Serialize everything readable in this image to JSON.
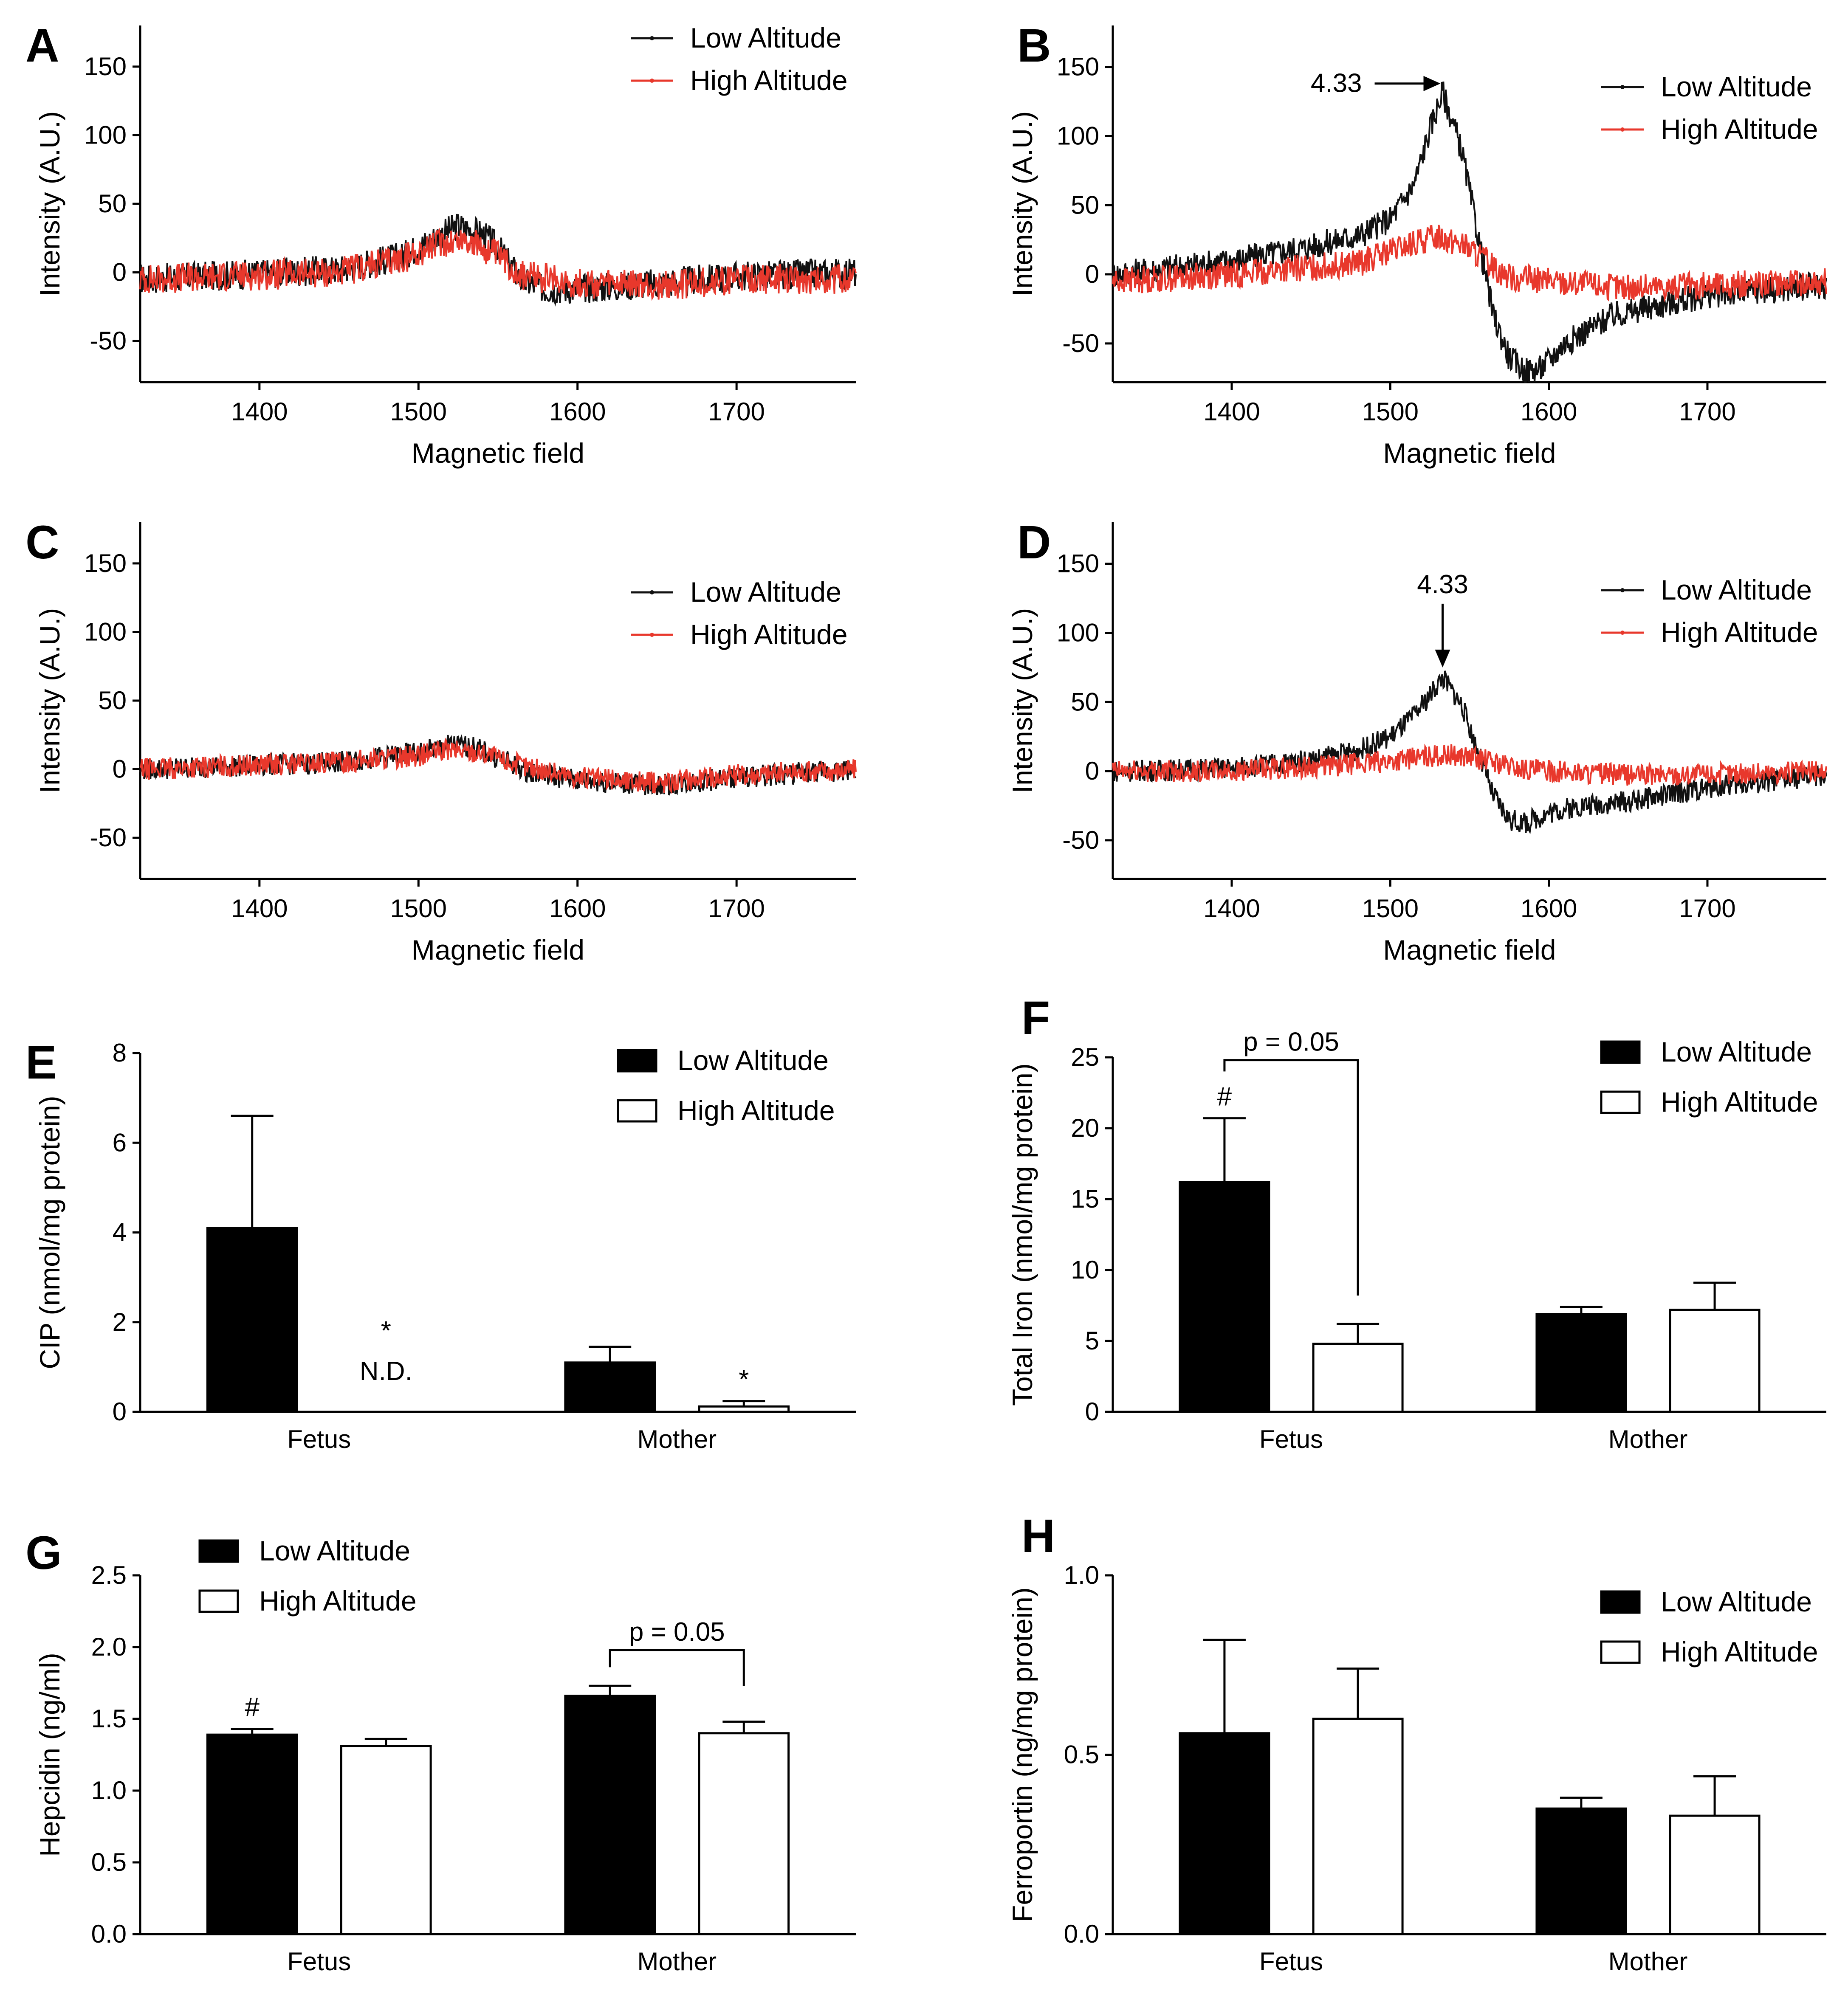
{
  "figure": {
    "title": ""
  },
  "legend_labels": {
    "low": "Low Altitude",
    "high": "High Altitude"
  },
  "colors": {
    "low": "#111111",
    "high": "#e8382c",
    "bar_low": "#000000",
    "bar_high": "#ffffff"
  },
  "chart_data": [
    {
      "id": "A",
      "panel_label": "A",
      "type": "line",
      "xlabel": "Magnetic field",
      "ylabel": "Intensity (A.U.)",
      "xlim": [
        1325,
        1775
      ],
      "ylim": [
        -80,
        180
      ],
      "xticks": [
        1400,
        1500,
        1600,
        1700
      ],
      "yticks": [
        -50,
        0,
        50,
        100,
        150
      ],
      "legend_position": "top-right",
      "noise": 11,
      "series": [
        {
          "name": "Low Altitude",
          "x": [
            1325,
            1450,
            1490,
            1510,
            1525,
            1540,
            1550,
            1565,
            1580,
            1600,
            1625,
            1650,
            1700,
            1775
          ],
          "y": [
            -5,
            2,
            12,
            25,
            34,
            28,
            18,
            -6,
            -12,
            -12,
            -10,
            -8,
            -3,
            0
          ]
        },
        {
          "name": "High Altitude",
          "x": [
            1325,
            1450,
            1490,
            1515,
            1530,
            1550,
            1565,
            1600,
            1650,
            1700,
            1775
          ],
          "y": [
            -5,
            0,
            10,
            22,
            24,
            12,
            -2,
            -8,
            -10,
            -5,
            -5
          ]
        }
      ],
      "annotations": []
    },
    {
      "id": "B",
      "panel_label": "B",
      "type": "line",
      "xlabel": "Magnetic field",
      "ylabel": "Intensity (A.U.)",
      "xlim": [
        1325,
        1775
      ],
      "ylim": [
        -78,
        180
      ],
      "xticks": [
        1400,
        1500,
        1600,
        1700
      ],
      "yticks": [
        -50,
        0,
        50,
        100,
        150
      ],
      "legend_position": "top-right",
      "noise": 10,
      "series": [
        {
          "name": "Low Altitude",
          "x": [
            1325,
            1400,
            1450,
            1480,
            1500,
            1515,
            1525,
            1533,
            1545,
            1555,
            1565,
            1575,
            1585,
            1595,
            1610,
            1640,
            1700,
            1775
          ],
          "y": [
            0,
            10,
            20,
            28,
            40,
            65,
            105,
            132,
            90,
            30,
            -30,
            -60,
            -70,
            -68,
            -50,
            -30,
            -15,
            -8
          ]
        },
        {
          "name": "High Altitude",
          "x": [
            1325,
            1400,
            1480,
            1510,
            1530,
            1545,
            1560,
            1575,
            1600,
            1650,
            1700,
            1775
          ],
          "y": [
            -5,
            0,
            8,
            20,
            28,
            22,
            10,
            -2,
            -5,
            -10,
            -8,
            -5
          ]
        }
      ],
      "annotations": [
        {
          "text": "4.33",
          "x": 1533,
          "y": 138,
          "arrow": "left"
        }
      ]
    },
    {
      "id": "C",
      "panel_label": "C",
      "type": "line",
      "xlabel": "Magnetic field",
      "ylabel": "Intensity (A.U.)",
      "xlim": [
        1325,
        1775
      ],
      "ylim": [
        -80,
        180
      ],
      "xticks": [
        1400,
        1500,
        1600,
        1700
      ],
      "yticks": [
        -50,
        0,
        50,
        100,
        150
      ],
      "legend_position": "top-right",
      "noise": 8,
      "series": [
        {
          "name": "Low Altitude",
          "x": [
            1325,
            1450,
            1500,
            1520,
            1535,
            1550,
            1570,
            1600,
            1650,
            1700,
            1775
          ],
          "y": [
            0,
            5,
            12,
            18,
            16,
            8,
            -2,
            -8,
            -12,
            -6,
            0
          ]
        },
        {
          "name": "High Altitude",
          "x": [
            1325,
            1450,
            1500,
            1520,
            1540,
            1560,
            1600,
            1650,
            1700,
            1775
          ],
          "y": [
            0,
            5,
            10,
            14,
            12,
            4,
            -6,
            -10,
            -4,
            0
          ]
        }
      ],
      "annotations": []
    },
    {
      "id": "D",
      "panel_label": "D",
      "type": "line",
      "xlabel": "Magnetic field",
      "ylabel": "Intensity (A.U.)",
      "xlim": [
        1325,
        1775
      ],
      "ylim": [
        -78,
        180
      ],
      "xticks": [
        1400,
        1500,
        1600,
        1700
      ],
      "yticks": [
        -50,
        0,
        50,
        100,
        150
      ],
      "legend_position": "top-right",
      "noise": 8,
      "series": [
        {
          "name": "Low Altitude",
          "x": [
            1325,
            1400,
            1450,
            1480,
            1500,
            1515,
            1525,
            1533,
            1545,
            1555,
            1565,
            1575,
            1585,
            1600,
            1620,
            1650,
            1700,
            1775
          ],
          "y": [
            0,
            2,
            8,
            15,
            25,
            40,
            55,
            68,
            48,
            15,
            -18,
            -35,
            -38,
            -30,
            -25,
            -22,
            -12,
            -3
          ]
        },
        {
          "name": "High Altitude",
          "x": [
            1325,
            1400,
            1480,
            1520,
            1540,
            1560,
            1580,
            1600,
            1650,
            1700,
            1775
          ],
          "y": [
            0,
            0,
            5,
            10,
            12,
            8,
            2,
            0,
            -3,
            -2,
            0
          ]
        }
      ],
      "annotations": [
        {
          "text": "4.33",
          "x": 1533,
          "y": 75,
          "arrow": "down"
        }
      ]
    },
    {
      "id": "E",
      "panel_label": "E",
      "type": "bar",
      "categories": [
        "Fetus",
        "Mother"
      ],
      "ylabel": "CIP (nmol/mg protein)",
      "xlabel": "",
      "ylim": [
        0,
        8
      ],
      "yticks": [
        0,
        2,
        4,
        6,
        8
      ],
      "ytick_labels": [
        "0",
        "2",
        "4",
        "6",
        "8"
      ],
      "legend_position": "top-right",
      "series": [
        {
          "name": "Low Altitude",
          "values": [
            4.1,
            1.1
          ],
          "errors": [
            2.5,
            0.35
          ]
        },
        {
          "name": "High Altitude",
          "values": [
            0,
            0.12
          ],
          "errors": [
            0,
            0.12
          ]
        }
      ],
      "bar_labels": [
        {
          "category": 0,
          "series": 1,
          "lines": [
            "*",
            "N.D."
          ]
        },
        {
          "category": 1,
          "series": 1,
          "lines": [
            "*"
          ]
        }
      ],
      "brackets": []
    },
    {
      "id": "F",
      "panel_label": "F",
      "type": "bar",
      "categories": [
        "Fetus",
        "Mother"
      ],
      "ylabel": "Total Iron (nmol/mg protein)",
      "xlabel": "",
      "ylim": [
        0,
        25
      ],
      "yticks": [
        0,
        5,
        10,
        15,
        20,
        25
      ],
      "ytick_labels": [
        "0",
        "5",
        "10",
        "15",
        "20",
        "25"
      ],
      "legend_position": "top-right",
      "series": [
        {
          "name": "Low Altitude",
          "values": [
            16.2,
            6.9
          ],
          "errors": [
            4.5,
            0.5
          ]
        },
        {
          "name": "High Altitude",
          "values": [
            4.8,
            7.2
          ],
          "errors": [
            1.4,
            1.9
          ]
        }
      ],
      "bar_labels": [
        {
          "category": 0,
          "series": 0,
          "lines": [
            "#"
          ]
        }
      ],
      "brackets": [
        {
          "category": 0,
          "text": "p = 0.05",
          "y_top": 24.8,
          "left_end": 24.0,
          "right_end": 8.2
        }
      ]
    },
    {
      "id": "G",
      "panel_label": "G",
      "type": "bar",
      "categories": [
        "Fetus",
        "Mother"
      ],
      "ylabel": "Hepcidin (ng/ml)",
      "xlabel": "",
      "ylim": [
        0,
        2.5
      ],
      "yticks": [
        0,
        0.5,
        1.0,
        1.5,
        2.0,
        2.5
      ],
      "ytick_labels": [
        "0.0",
        "0.5",
        "1.0",
        "1.5",
        "2.0",
        "2.5"
      ],
      "legend_position": "top-left",
      "series": [
        {
          "name": "Low Altitude",
          "values": [
            1.39,
            1.66
          ],
          "errors": [
            0.04,
            0.07
          ]
        },
        {
          "name": "High Altitude",
          "values": [
            1.31,
            1.4
          ],
          "errors": [
            0.05,
            0.08
          ]
        }
      ],
      "bar_labels": [
        {
          "category": 0,
          "series": 0,
          "lines": [
            "#"
          ]
        }
      ],
      "brackets": [
        {
          "category": 1,
          "text": "p = 0.05",
          "y_top": 1.98,
          "left_end": 1.86,
          "right_end": 1.73
        }
      ]
    },
    {
      "id": "H",
      "panel_label": "H",
      "type": "bar",
      "categories": [
        "Fetus",
        "Mother"
      ],
      "ylabel": "Ferroportin (ng/mg protein)",
      "xlabel": "",
      "ylim": [
        0,
        1.0
      ],
      "yticks": [
        0,
        0.5,
        1.0
      ],
      "ytick_labels": [
        "0.0",
        "0.5",
        "1.0"
      ],
      "legend_position": "top-right",
      "series": [
        {
          "name": "Low Altitude",
          "values": [
            0.56,
            0.35
          ],
          "errors": [
            0.26,
            0.03
          ]
        },
        {
          "name": "High Altitude",
          "values": [
            0.6,
            0.33
          ],
          "errors": [
            0.14,
            0.11
          ]
        }
      ],
      "bar_labels": [],
      "brackets": []
    }
  ]
}
